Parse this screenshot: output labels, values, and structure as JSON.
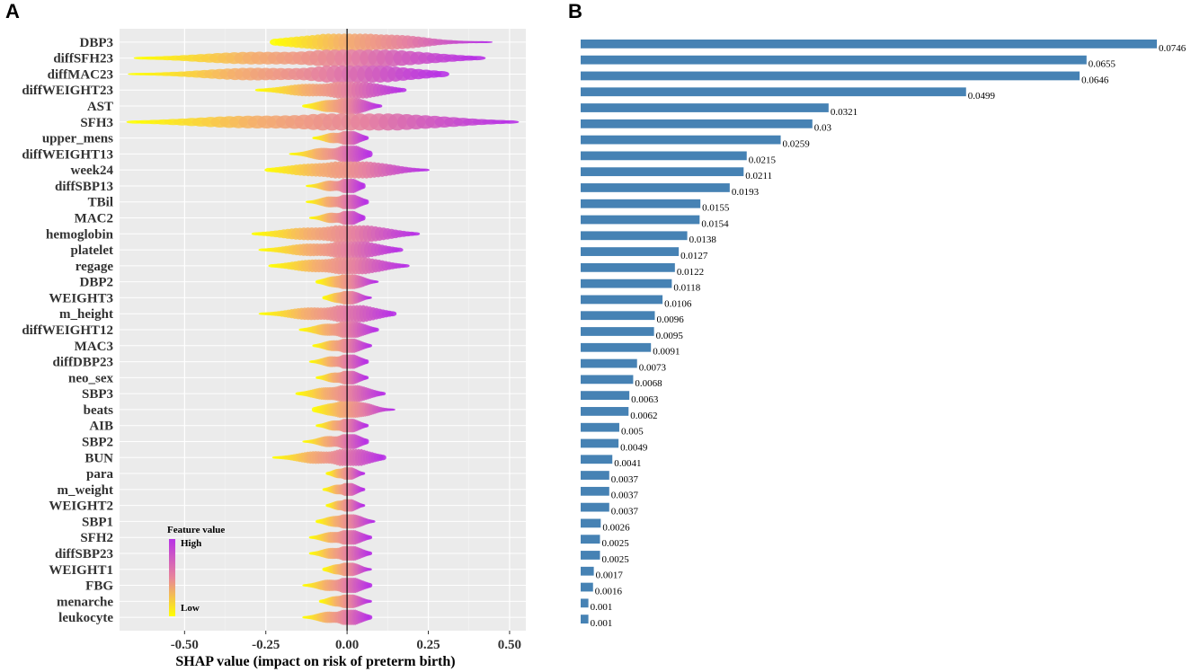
{
  "panels": {
    "left_label": "A",
    "right_label": "B"
  },
  "colors": {
    "bar": "#4682b4",
    "low": "#ffff00",
    "high": "#b832e6",
    "panel_bg": "#ebebeb"
  },
  "chart_data": [
    {
      "type": "scatter",
      "subtype": "shap-beeswarm",
      "xlabel": "SHAP value (impact on risk of preterm birth)",
      "xlim": [
        -0.7,
        0.55
      ],
      "xticks": [
        -0.5,
        -0.25,
        0.0,
        0.25,
        0.5
      ],
      "xtick_labels": [
        "-0.50",
        "-0.25",
        "0.00",
        "0.25",
        "0.50"
      ],
      "legend": {
        "title": "Feature value",
        "high": "High",
        "low": "Low",
        "placement": "bottom-left"
      },
      "features": [
        {
          "name": "DBP3",
          "min": -0.22,
          "max": 0.43
        },
        {
          "name": "diffSFH23",
          "min": -0.63,
          "max": 0.4
        },
        {
          "name": "diffMAC23",
          "min": -0.65,
          "max": 0.29
        },
        {
          "name": "diffWEIGHT23",
          "min": -0.27,
          "max": 0.17
        },
        {
          "name": "AST",
          "min": -0.13,
          "max": 0.1
        },
        {
          "name": "SFH3",
          "min": -0.65,
          "max": 0.5
        },
        {
          "name": "upper_mens",
          "min": -0.1,
          "max": 0.06
        },
        {
          "name": "diffWEIGHT13",
          "min": -0.17,
          "max": 0.07
        },
        {
          "name": "week24",
          "min": -0.24,
          "max": 0.24
        },
        {
          "name": "diffSBP13",
          "min": -0.12,
          "max": 0.05
        },
        {
          "name": "TBil",
          "min": -0.12,
          "max": 0.06
        },
        {
          "name": "MAC2",
          "min": -0.11,
          "max": 0.05
        },
        {
          "name": "hemoglobin",
          "min": -0.28,
          "max": 0.21
        },
        {
          "name": "platelet",
          "min": -0.26,
          "max": 0.16
        },
        {
          "name": "regage",
          "min": -0.23,
          "max": 0.18
        },
        {
          "name": "DBP2",
          "min": -0.09,
          "max": 0.09
        },
        {
          "name": "WEIGHT3",
          "min": -0.07,
          "max": 0.07
        },
        {
          "name": "m_height",
          "min": -0.26,
          "max": 0.14
        },
        {
          "name": "diffWEIGHT12",
          "min": -0.14,
          "max": 0.09
        },
        {
          "name": "MAC3",
          "min": -0.1,
          "max": 0.07
        },
        {
          "name": "diffDBP23",
          "min": -0.11,
          "max": 0.06
        },
        {
          "name": "neo_sex",
          "min": -0.09,
          "max": 0.06
        },
        {
          "name": "SBP3",
          "min": -0.15,
          "max": 0.11
        },
        {
          "name": "beats",
          "min": -0.1,
          "max": 0.14
        },
        {
          "name": "AIB",
          "min": -0.09,
          "max": 0.06
        },
        {
          "name": "SBP2",
          "min": -0.13,
          "max": 0.06
        },
        {
          "name": "BUN",
          "min": -0.22,
          "max": 0.11
        },
        {
          "name": "para",
          "min": -0.06,
          "max": 0.05
        },
        {
          "name": "m_weight",
          "min": -0.07,
          "max": 0.05
        },
        {
          "name": "WEIGHT2",
          "min": -0.06,
          "max": 0.05
        },
        {
          "name": "SBP1",
          "min": -0.09,
          "max": 0.08
        },
        {
          "name": "SFH2",
          "min": -0.11,
          "max": 0.07
        },
        {
          "name": "diffSBP23",
          "min": -0.11,
          "max": 0.07
        },
        {
          "name": "WEIGHT1",
          "min": -0.07,
          "max": 0.07
        },
        {
          "name": "FBG",
          "min": -0.13,
          "max": 0.07
        },
        {
          "name": "menarche",
          "min": -0.08,
          "max": 0.07
        },
        {
          "name": "leukocyte",
          "min": -0.13,
          "max": 0.07
        }
      ]
    },
    {
      "type": "bar",
      "orientation": "horizontal",
      "values": [
        0.0746,
        0.0655,
        0.0646,
        0.0499,
        0.0321,
        0.03,
        0.0259,
        0.0215,
        0.0211,
        0.0193,
        0.0155,
        0.0154,
        0.0138,
        0.0127,
        0.0122,
        0.0118,
        0.0106,
        0.0096,
        0.0095,
        0.0091,
        0.0073,
        0.0068,
        0.0063,
        0.0062,
        0.005,
        0.0049,
        0.0041,
        0.0037,
        0.0037,
        0.0037,
        0.0026,
        0.0025,
        0.0025,
        0.0017,
        0.0016,
        0.001,
        0.001
      ],
      "labels": [
        "0.0746",
        "0.0655",
        "0.0646",
        "0.0499",
        "0.0321",
        "0.03",
        "0.0259",
        "0.0215",
        "0.0211",
        "0.0193",
        "0.0155",
        "0.0154",
        "0.0138",
        "0.0127",
        "0.0122",
        "0.0118",
        "0.0106",
        "0.0096",
        "0.0095",
        "0.0091",
        "0.0073",
        "0.0068",
        "0.0063",
        "0.0062",
        "0.005",
        "0.0049",
        "0.0041",
        "0.0037",
        "0.0037",
        "0.0037",
        "0.0026",
        "0.0025",
        "0.0025",
        "0.0017",
        "0.0016",
        "0.001",
        "0.001"
      ]
    }
  ]
}
